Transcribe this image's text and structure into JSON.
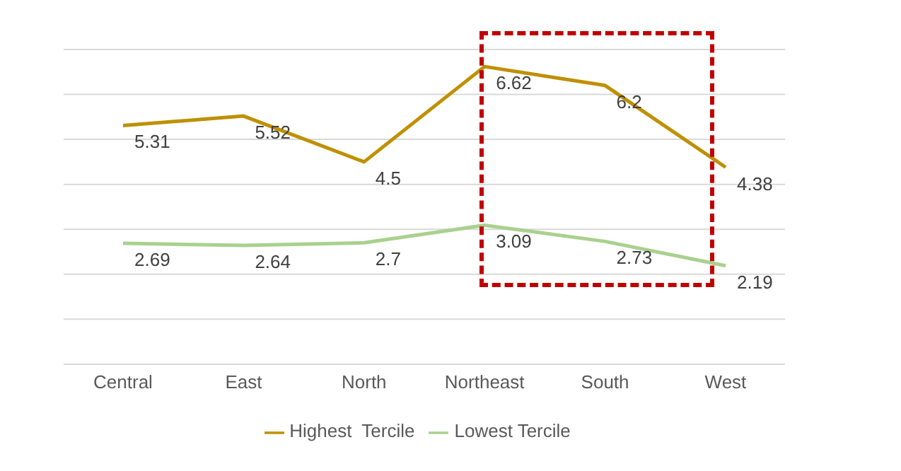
{
  "chart_data": {
    "type": "line",
    "categories": [
      "Central",
      "East",
      "North",
      "Northeast",
      "South",
      "West"
    ],
    "series": [
      {
        "name": "Highest  Tercile",
        "color": "#bf9000",
        "values": [
          5.31,
          5.52,
          4.5,
          6.62,
          6.2,
          4.38
        ]
      },
      {
        "name": "Lowest Tercile",
        "color": "#a9d18e",
        "values": [
          2.69,
          2.64,
          2.7,
          3.09,
          2.73,
          2.19
        ]
      }
    ],
    "ylim": [
      0,
      7
    ],
    "tick_labels": "x",
    "grid": "y",
    "legend": "bottom",
    "marker": "none",
    "line_style": "solid",
    "data_labels": true
  }
}
